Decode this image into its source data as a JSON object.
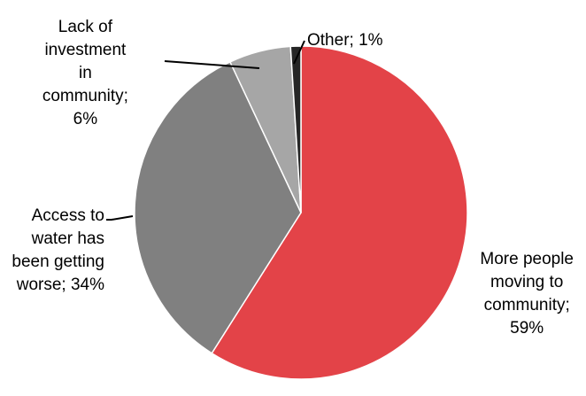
{
  "chart_data": {
    "type": "pie",
    "title": "",
    "slices": [
      {
        "category": "More people moving to community",
        "value": 59,
        "color": "#e34348",
        "label_lines": [
          "More people",
          "moving to",
          "community;",
          "59%"
        ]
      },
      {
        "category": "Access to water has been getting worse",
        "value": 34,
        "color": "#808080",
        "label_lines": [
          "Access to",
          "water has",
          "been getting",
          "worse; 34%"
        ]
      },
      {
        "category": "Lack of investment in community",
        "value": 6,
        "color": "#a6a6a6",
        "label_lines": [
          "Lack of",
          "investment",
          "in",
          "community;",
          "6%"
        ]
      },
      {
        "category": "Other",
        "value": 1,
        "color": "#262626",
        "label_lines": [
          "Other; 1%"
        ]
      }
    ],
    "legend": "none"
  }
}
